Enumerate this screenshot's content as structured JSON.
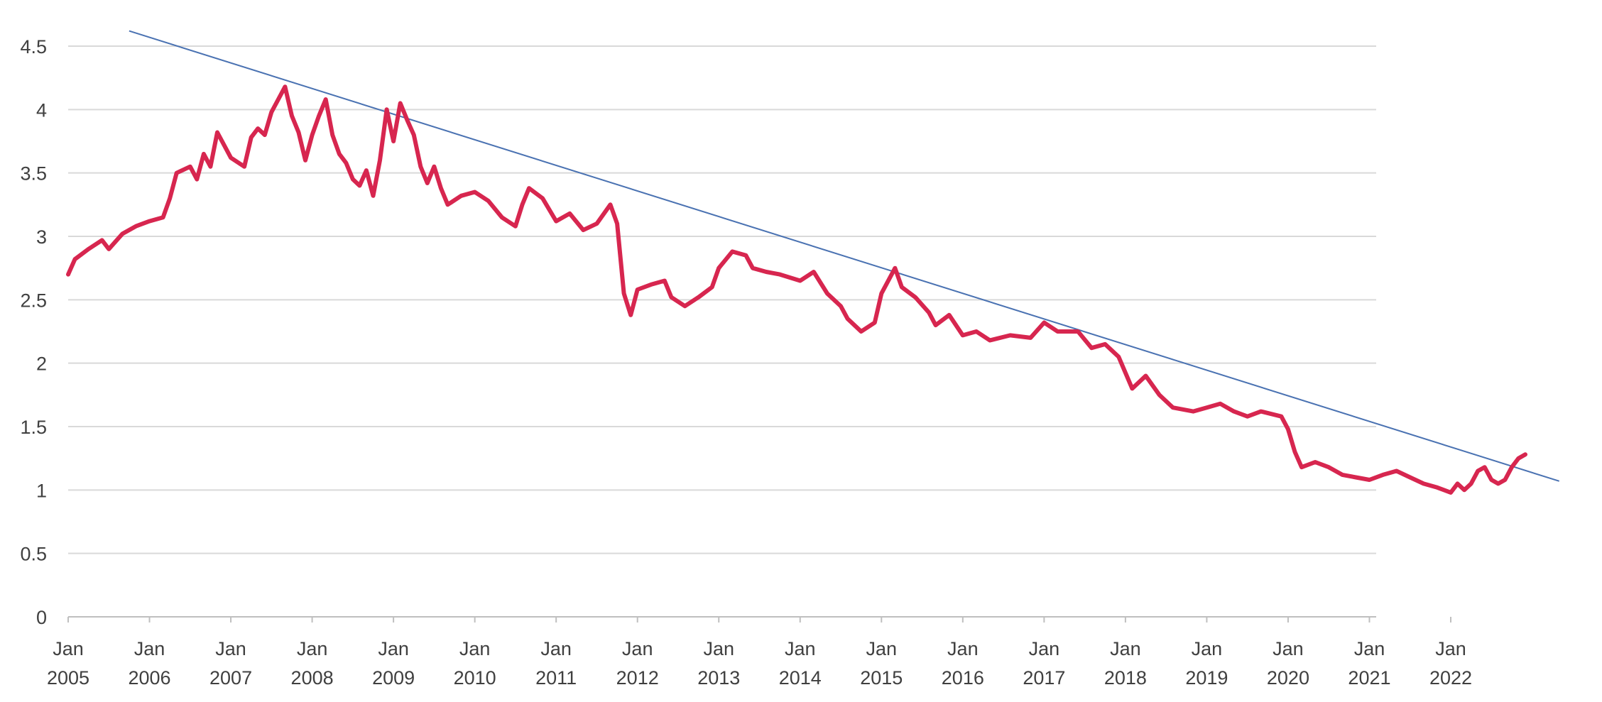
{
  "chart_data": {
    "type": "line",
    "title": "",
    "xlabel": "",
    "ylabel": "",
    "ylim": [
      0,
      4.5
    ],
    "xlim": [
      "2005-01",
      "2023-01"
    ],
    "grid": "horizontal",
    "y_ticks": [
      "0",
      "0.5",
      "1",
      "1.5",
      "2",
      "2.5",
      "3",
      "3.5",
      "4",
      "4.5"
    ],
    "x_ticks": [
      {
        "date": "2005-01",
        "line1": "Jan",
        "line2": "2005"
      },
      {
        "date": "2006-01",
        "line1": "Jan",
        "line2": "2006"
      },
      {
        "date": "2007-01",
        "line1": "Jan",
        "line2": "2007"
      },
      {
        "date": "2008-01",
        "line1": "Jan",
        "line2": "2008"
      },
      {
        "date": "2009-01",
        "line1": "Jan",
        "line2": "2009"
      },
      {
        "date": "2010-01",
        "line1": "Jan",
        "line2": "2010"
      },
      {
        "date": "2011-01",
        "line1": "Jan",
        "line2": "2011"
      },
      {
        "date": "2012-01",
        "line1": "Jan",
        "line2": "2012"
      },
      {
        "date": "2013-01",
        "line1": "Jan",
        "line2": "2013"
      },
      {
        "date": "2014-01",
        "line1": "Jan",
        "line2": "2014"
      },
      {
        "date": "2015-01",
        "line1": "Jan",
        "line2": "2015"
      },
      {
        "date": "2016-01",
        "line1": "Jan",
        "line2": "2016"
      },
      {
        "date": "2017-01",
        "line1": "Jan",
        "line2": "2017"
      },
      {
        "date": "2018-01",
        "line1": "Jan",
        "line2": "2018"
      },
      {
        "date": "2019-01",
        "line1": "Jan",
        "line2": "2019"
      },
      {
        "date": "2020-01",
        "line1": "Jan",
        "line2": "2020"
      },
      {
        "date": "2021-01",
        "line1": "Jan",
        "line2": "2021"
      },
      {
        "date": "2022-01",
        "line1": "Jan",
        "line2": "2022"
      }
    ],
    "series": [
      {
        "color": "#d7264f",
        "points": [
          [
            "2005-01",
            2.7
          ],
          [
            "2005-02",
            2.82
          ],
          [
            "2005-04",
            2.9
          ],
          [
            "2005-06",
            2.97
          ],
          [
            "2005-07",
            2.9
          ],
          [
            "2005-09",
            3.02
          ],
          [
            "2005-11",
            3.08
          ],
          [
            "2006-01",
            3.12
          ],
          [
            "2006-03",
            3.15
          ],
          [
            "2006-04",
            3.3
          ],
          [
            "2006-05",
            3.5
          ],
          [
            "2006-07",
            3.55
          ],
          [
            "2006-08",
            3.45
          ],
          [
            "2006-09",
            3.65
          ],
          [
            "2006-10",
            3.55
          ],
          [
            "2006-11",
            3.82
          ],
          [
            "2007-01",
            3.62
          ],
          [
            "2007-03",
            3.55
          ],
          [
            "2007-04",
            3.78
          ],
          [
            "2007-05",
            3.85
          ],
          [
            "2007-06",
            3.8
          ],
          [
            "2007-07",
            3.98
          ],
          [
            "2007-08",
            4.08
          ],
          [
            "2007-09",
            4.18
          ],
          [
            "2007-10",
            3.95
          ],
          [
            "2007-11",
            3.82
          ],
          [
            "2007-12",
            3.6
          ],
          [
            "2008-01",
            3.8
          ],
          [
            "2008-02",
            3.95
          ],
          [
            "2008-03",
            4.08
          ],
          [
            "2008-04",
            3.8
          ],
          [
            "2008-05",
            3.65
          ],
          [
            "2008-06",
            3.58
          ],
          [
            "2008-07",
            3.45
          ],
          [
            "2008-08",
            3.4
          ],
          [
            "2008-09",
            3.52
          ],
          [
            "2008-10",
            3.32
          ],
          [
            "2008-11",
            3.6
          ],
          [
            "2008-12",
            4.0
          ],
          [
            "2009-01",
            3.75
          ],
          [
            "2009-02",
            4.05
          ],
          [
            "2009-03",
            3.92
          ],
          [
            "2009-04",
            3.8
          ],
          [
            "2009-05",
            3.55
          ],
          [
            "2009-06",
            3.42
          ],
          [
            "2009-07",
            3.55
          ],
          [
            "2009-08",
            3.38
          ],
          [
            "2009-09",
            3.25
          ],
          [
            "2009-11",
            3.32
          ],
          [
            "2010-01",
            3.35
          ],
          [
            "2010-03",
            3.28
          ],
          [
            "2010-05",
            3.15
          ],
          [
            "2010-07",
            3.08
          ],
          [
            "2010-08",
            3.25
          ],
          [
            "2010-09",
            3.38
          ],
          [
            "2010-11",
            3.3
          ],
          [
            "2011-01",
            3.12
          ],
          [
            "2011-03",
            3.18
          ],
          [
            "2011-05",
            3.05
          ],
          [
            "2011-07",
            3.1
          ],
          [
            "2011-09",
            3.25
          ],
          [
            "2011-10",
            3.1
          ],
          [
            "2011-11",
            2.55
          ],
          [
            "2011-12",
            2.38
          ],
          [
            "2012-01",
            2.58
          ],
          [
            "2012-03",
            2.62
          ],
          [
            "2012-05",
            2.65
          ],
          [
            "2012-06",
            2.52
          ],
          [
            "2012-08",
            2.45
          ],
          [
            "2012-10",
            2.52
          ],
          [
            "2012-12",
            2.6
          ],
          [
            "2013-01",
            2.75
          ],
          [
            "2013-03",
            2.88
          ],
          [
            "2013-05",
            2.85
          ],
          [
            "2013-06",
            2.75
          ],
          [
            "2013-08",
            2.72
          ],
          [
            "2013-10",
            2.7
          ],
          [
            "2014-01",
            2.65
          ],
          [
            "2014-03",
            2.72
          ],
          [
            "2014-05",
            2.55
          ],
          [
            "2014-07",
            2.45
          ],
          [
            "2014-08",
            2.35
          ],
          [
            "2014-10",
            2.25
          ],
          [
            "2014-12",
            2.32
          ],
          [
            "2015-01",
            2.55
          ],
          [
            "2015-03",
            2.75
          ],
          [
            "2015-04",
            2.6
          ],
          [
            "2015-06",
            2.52
          ],
          [
            "2015-08",
            2.4
          ],
          [
            "2015-09",
            2.3
          ],
          [
            "2015-11",
            2.38
          ],
          [
            "2016-01",
            2.22
          ],
          [
            "2016-03",
            2.25
          ],
          [
            "2016-05",
            2.18
          ],
          [
            "2016-08",
            2.22
          ],
          [
            "2016-11",
            2.2
          ],
          [
            "2017-01",
            2.32
          ],
          [
            "2017-03",
            2.25
          ],
          [
            "2017-06",
            2.25
          ],
          [
            "2017-08",
            2.12
          ],
          [
            "2017-10",
            2.15
          ],
          [
            "2017-12",
            2.05
          ],
          [
            "2018-02",
            1.8
          ],
          [
            "2018-04",
            1.9
          ],
          [
            "2018-06",
            1.75
          ],
          [
            "2018-08",
            1.65
          ],
          [
            "2018-11",
            1.62
          ],
          [
            "2019-01",
            1.65
          ],
          [
            "2019-03",
            1.68
          ],
          [
            "2019-05",
            1.62
          ],
          [
            "2019-07",
            1.58
          ],
          [
            "2019-09",
            1.62
          ],
          [
            "2019-12",
            1.58
          ],
          [
            "2020-01",
            1.48
          ],
          [
            "2020-02",
            1.3
          ],
          [
            "2020-03",
            1.18
          ],
          [
            "2020-05",
            1.22
          ],
          [
            "2020-07",
            1.18
          ],
          [
            "2020-09",
            1.12
          ],
          [
            "2020-11",
            1.1
          ],
          [
            "2021-01",
            1.08
          ],
          [
            "2021-03",
            1.12
          ],
          [
            "2021-05",
            1.15
          ],
          [
            "2021-07",
            1.1
          ],
          [
            "2021-09",
            1.05
          ],
          [
            "2021-11",
            1.02
          ],
          [
            "2022-01",
            0.98
          ],
          [
            "2022-02",
            1.05
          ],
          [
            "2022-03",
            1.0
          ],
          [
            "2022-04",
            1.05
          ],
          [
            "2022-05",
            1.15
          ],
          [
            "2022-06",
            1.18
          ],
          [
            "2022-07",
            1.08
          ],
          [
            "2022-08",
            1.05
          ],
          [
            "2022-09",
            1.08
          ],
          [
            "2022-10",
            1.18
          ],
          [
            "2022-11",
            1.25
          ],
          [
            "2022-12",
            1.28
          ]
        ]
      }
    ],
    "trendline": {
      "color": "#4a72b2",
      "points": [
        [
          "2005-10",
          4.62
        ],
        [
          "2023-05",
          1.07
        ]
      ]
    }
  }
}
